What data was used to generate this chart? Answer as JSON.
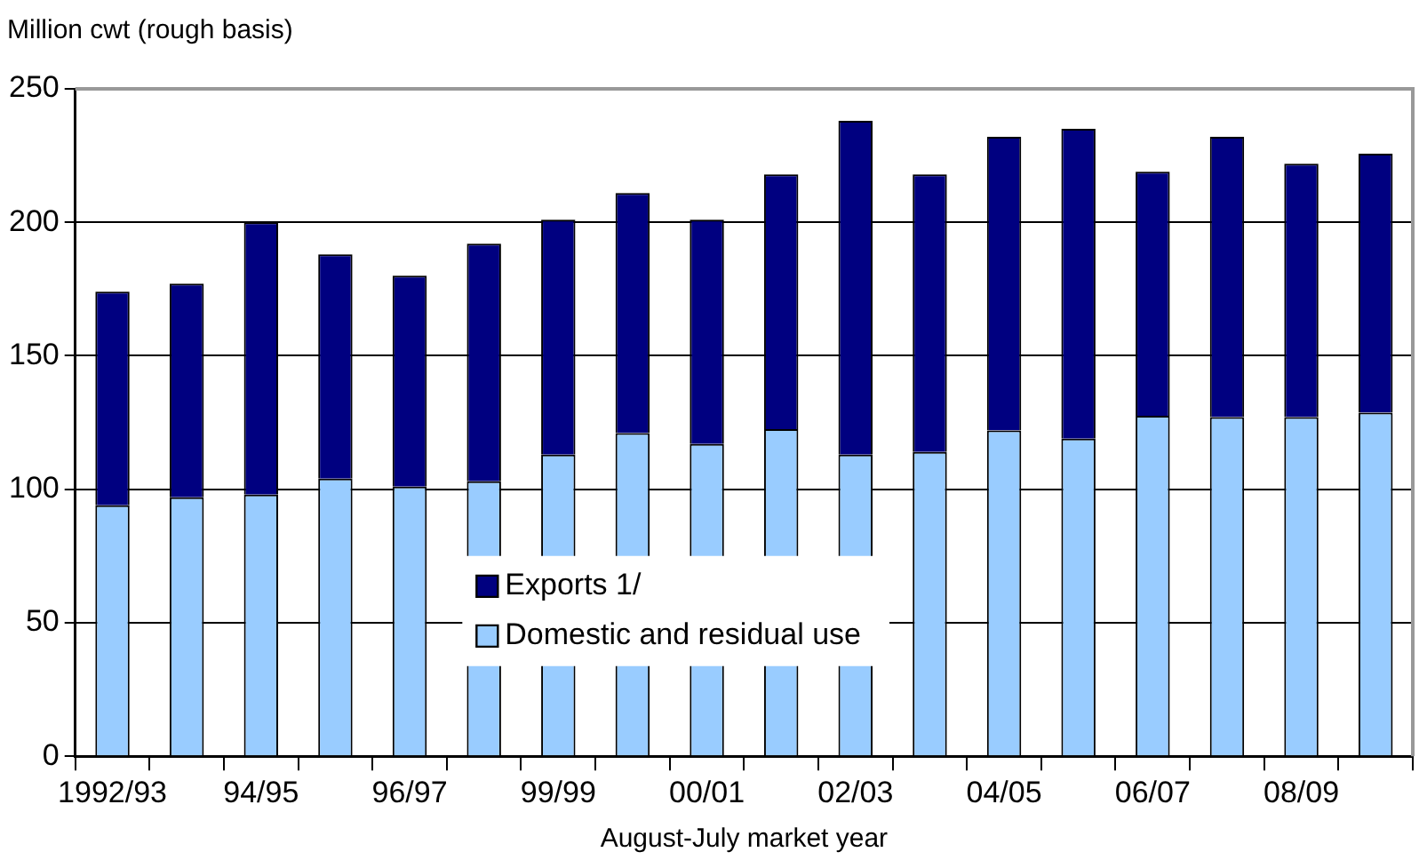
{
  "chart_data": {
    "type": "bar",
    "ylabel": "Million cwt (rough basis)",
    "xlabel": "August-July market year",
    "stacked": true,
    "grid": "y",
    "legend": "bottom",
    "categories": [
      "1992/93",
      null,
      "94/95",
      null,
      "96/97",
      null,
      "99/99",
      null,
      "00/01",
      null,
      "02/03",
      null,
      "04/05",
      null,
      "06/07",
      null,
      "08/09",
      null
    ],
    "ylim": [
      0,
      250
    ],
    "yticks": [
      0,
      50,
      100,
      150,
      200,
      250
    ],
    "series": [
      {
        "name": "Domestic and residual use",
        "color": "#99ccff",
        "values": [
          94,
          97,
          98,
          104,
          101,
          103,
          113,
          121,
          117,
          122.5,
          113,
          114,
          122,
          119,
          127.5,
          127,
          127,
          128.7
        ]
      },
      {
        "name": "Exports 1/",
        "color": "#000080",
        "values": [
          80,
          80,
          102,
          84,
          79,
          89,
          88,
          90,
          84,
          95.5,
          125,
          104,
          110,
          116,
          91.5,
          105,
          95,
          97
        ]
      }
    ]
  }
}
